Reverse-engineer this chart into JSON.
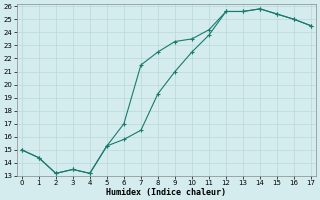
{
  "xlabel": "Humidex (Indice chaleur)",
  "background_color": "#d4ecee",
  "grid_color": "#b8d8da",
  "line_color": "#1a7a6e",
  "xlim": [
    0,
    17
  ],
  "ylim": [
    13,
    26
  ],
  "yticks": [
    13,
    14,
    15,
    16,
    17,
    18,
    19,
    20,
    21,
    22,
    23,
    24,
    25,
    26
  ],
  "xticks": [
    0,
    1,
    2,
    3,
    4,
    5,
    6,
    7,
    8,
    9,
    10,
    11,
    12,
    13,
    14,
    15,
    16,
    17
  ],
  "upper_x": [
    0,
    1,
    2,
    3,
    4,
    5,
    6,
    7,
    8,
    9,
    10,
    11,
    12,
    13,
    14,
    15,
    16,
    17
  ],
  "upper_y": [
    15.0,
    14.4,
    13.2,
    13.5,
    13.2,
    15.3,
    17.0,
    21.5,
    22.5,
    23.3,
    23.5,
    24.2,
    25.6,
    25.6,
    25.8,
    25.4,
    25.0,
    24.5
  ],
  "lower_x": [
    0,
    1,
    2,
    3,
    4,
    5,
    6,
    7,
    8,
    9,
    10,
    11,
    12,
    13,
    14,
    15,
    16,
    17
  ],
  "lower_y": [
    15.0,
    14.4,
    13.2,
    13.5,
    13.2,
    15.3,
    15.8,
    16.5,
    19.3,
    21.0,
    22.5,
    23.8,
    25.6,
    25.6,
    25.8,
    25.4,
    25.0,
    24.5
  ],
  "figsize": [
    3.2,
    2.0
  ],
  "dpi": 100
}
